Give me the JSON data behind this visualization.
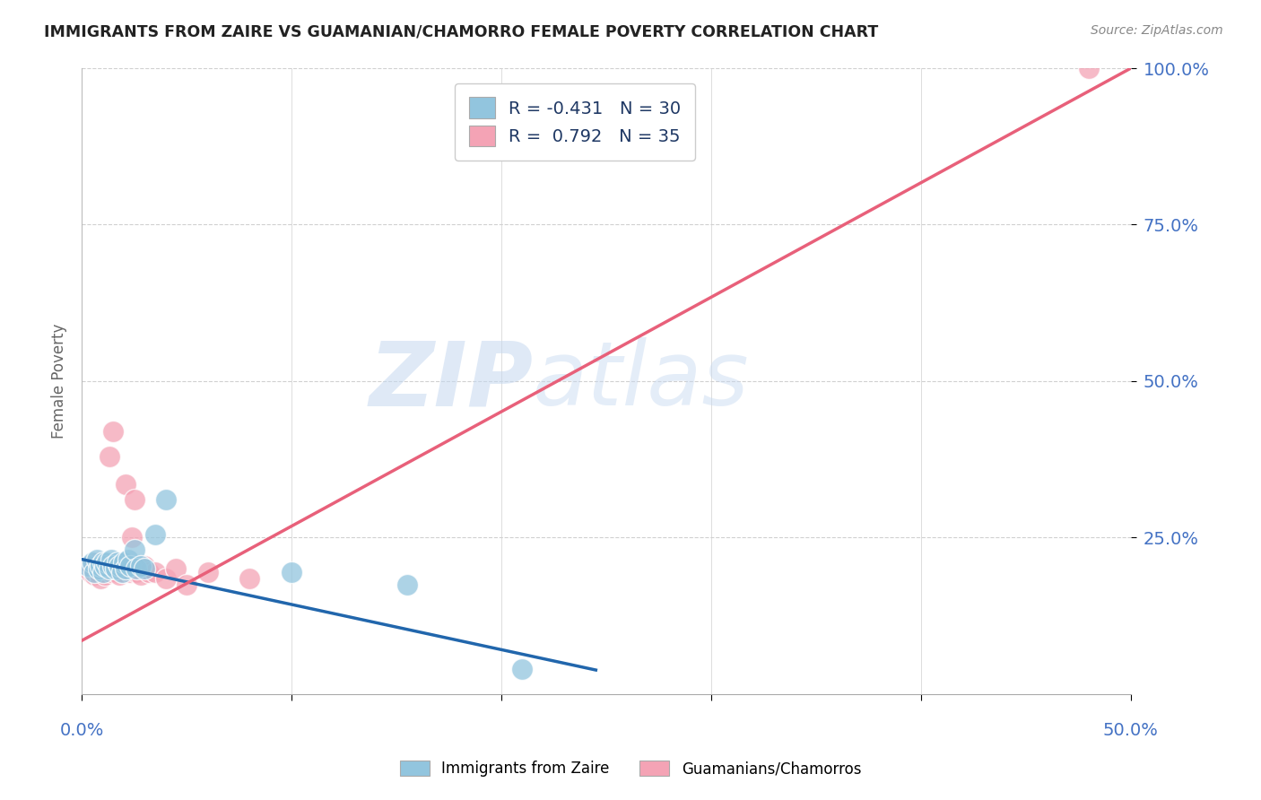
{
  "title": "IMMIGRANTS FROM ZAIRE VS GUAMANIAN/CHAMORRO FEMALE POVERTY CORRELATION CHART",
  "source_text": "Source: ZipAtlas.com",
  "ylabel": "Female Poverty",
  "xlim": [
    0.0,
    0.5
  ],
  "ylim": [
    0.0,
    1.0
  ],
  "xtick_values": [
    0.0,
    0.1,
    0.2,
    0.3,
    0.4,
    0.5
  ],
  "ytick_values": [
    0.25,
    0.5,
    0.75,
    1.0
  ],
  "ytick_labels": [
    "25.0%",
    "50.0%",
    "75.0%",
    "100.0%"
  ],
  "watermark_zip": "ZIP",
  "watermark_atlas": "atlas",
  "legend_blue_label": "R = -0.431   N = 30",
  "legend_pink_label": "R =  0.792   N = 35",
  "blue_color": "#92c5de",
  "pink_color": "#f4a3b5",
  "blue_line_color": "#2166ac",
  "pink_line_color": "#e8607a",
  "blue_points_x": [
    0.003,
    0.005,
    0.006,
    0.007,
    0.008,
    0.009,
    0.01,
    0.01,
    0.011,
    0.012,
    0.013,
    0.014,
    0.015,
    0.016,
    0.017,
    0.018,
    0.019,
    0.02,
    0.021,
    0.022,
    0.023,
    0.025,
    0.026,
    0.028,
    0.03,
    0.035,
    0.04,
    0.1,
    0.155,
    0.21
  ],
  "blue_points_y": [
    0.205,
    0.21,
    0.195,
    0.215,
    0.2,
    0.205,
    0.21,
    0.195,
    0.205,
    0.21,
    0.2,
    0.215,
    0.205,
    0.2,
    0.21,
    0.205,
    0.195,
    0.21,
    0.2,
    0.215,
    0.205,
    0.23,
    0.2,
    0.205,
    0.2,
    0.255,
    0.31,
    0.195,
    0.175,
    0.04
  ],
  "pink_points_x": [
    0.003,
    0.004,
    0.005,
    0.006,
    0.007,
    0.008,
    0.009,
    0.01,
    0.011,
    0.012,
    0.013,
    0.014,
    0.015,
    0.016,
    0.017,
    0.018,
    0.019,
    0.02,
    0.021,
    0.022,
    0.023,
    0.024,
    0.025,
    0.026,
    0.027,
    0.028,
    0.03,
    0.032,
    0.035,
    0.04,
    0.045,
    0.05,
    0.06,
    0.08,
    0.48
  ],
  "pink_points_y": [
    0.205,
    0.195,
    0.2,
    0.19,
    0.21,
    0.195,
    0.185,
    0.205,
    0.19,
    0.2,
    0.38,
    0.195,
    0.42,
    0.2,
    0.195,
    0.19,
    0.205,
    0.195,
    0.335,
    0.2,
    0.195,
    0.25,
    0.31,
    0.195,
    0.2,
    0.19,
    0.205,
    0.195,
    0.195,
    0.185,
    0.2,
    0.175,
    0.195,
    0.185,
    1.0
  ],
  "blue_trend_x0": 0.0,
  "blue_trend_y0": 0.215,
  "blue_trend_x1": 0.245,
  "blue_trend_y1": 0.038,
  "pink_trend_x0": 0.0,
  "pink_trend_y0": 0.085,
  "pink_trend_x1": 0.5,
  "pink_trend_y1": 1.0,
  "background_color": "#ffffff",
  "grid_color": "#d0d0d0",
  "title_color": "#222222",
  "tick_label_color": "#4472c4",
  "source_color": "#888888",
  "legend_text_color": "#1f3864"
}
